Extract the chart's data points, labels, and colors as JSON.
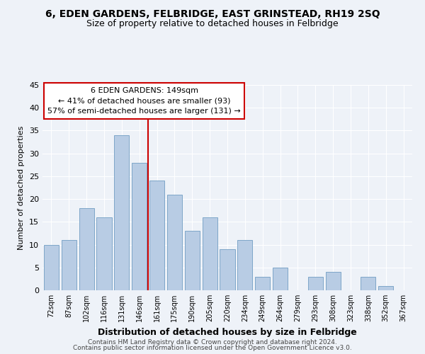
{
  "title": "6, EDEN GARDENS, FELBRIDGE, EAST GRINSTEAD, RH19 2SQ",
  "subtitle": "Size of property relative to detached houses in Felbridge",
  "xlabel": "Distribution of detached houses by size in Felbridge",
  "ylabel": "Number of detached properties",
  "bar_labels": [
    "72sqm",
    "87sqm",
    "102sqm",
    "116sqm",
    "131sqm",
    "146sqm",
    "161sqm",
    "175sqm",
    "190sqm",
    "205sqm",
    "220sqm",
    "234sqm",
    "249sqm",
    "264sqm",
    "279sqm",
    "293sqm",
    "308sqm",
    "323sqm",
    "338sqm",
    "352sqm",
    "367sqm"
  ],
  "bar_values": [
    10,
    11,
    18,
    16,
    34,
    28,
    24,
    21,
    13,
    16,
    9,
    11,
    3,
    5,
    0,
    3,
    4,
    0,
    3,
    1,
    0
  ],
  "bar_color": "#b8cce4",
  "bar_edge_color": "#7ea6c8",
  "vline_color": "#cc0000",
  "vline_bar_index": 5,
  "annotation_title": "6 EDEN GARDENS: 149sqm",
  "annotation_line1": "← 41% of detached houses are smaller (93)",
  "annotation_line2": "57% of semi-detached houses are larger (131) →",
  "annotation_box_color": "#ffffff",
  "annotation_box_edge": "#cc0000",
  "ylim": [
    0,
    45
  ],
  "yticks": [
    0,
    5,
    10,
    15,
    20,
    25,
    30,
    35,
    40,
    45
  ],
  "footer1": "Contains HM Land Registry data © Crown copyright and database right 2024.",
  "footer2": "Contains public sector information licensed under the Open Government Licence v3.0.",
  "bg_color": "#eef2f8",
  "grid_color": "#ffffff",
  "title_fontsize": 10,
  "subtitle_fontsize": 9
}
